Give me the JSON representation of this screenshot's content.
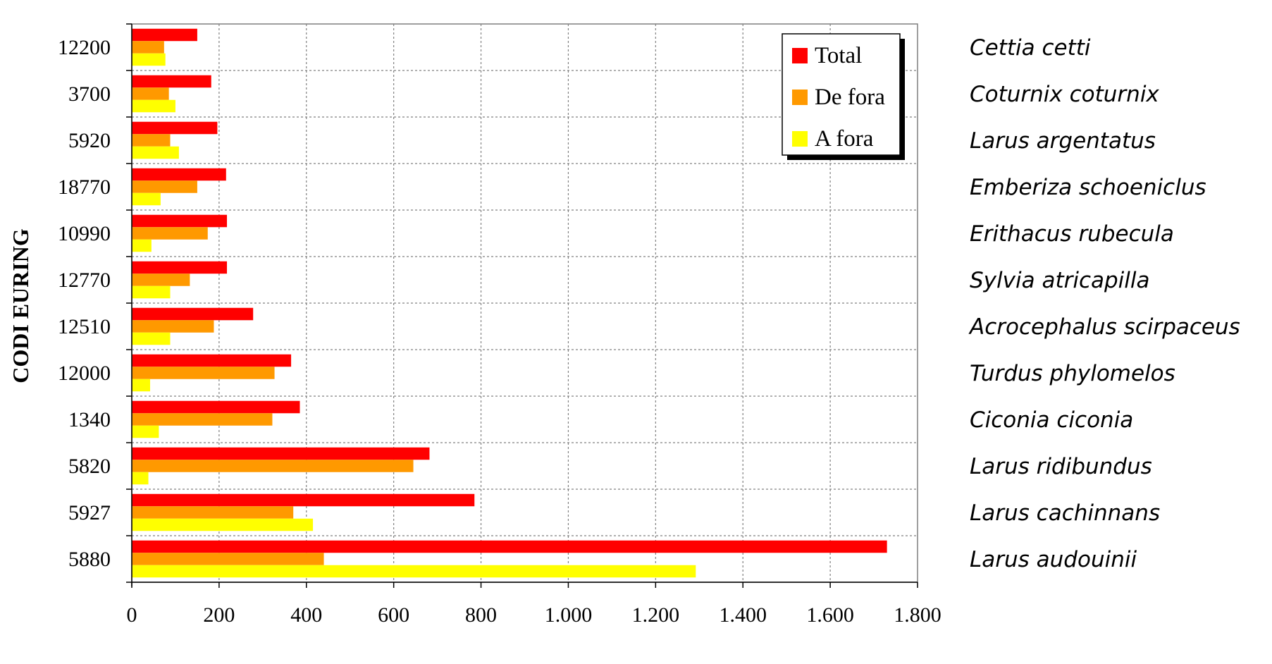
{
  "chart_data": {
    "type": "bar",
    "orientation": "horizontal",
    "ylabel": "CODI EURING",
    "xlim": [
      0,
      1800
    ],
    "xticks": [
      0,
      200,
      400,
      600,
      800,
      1000,
      1200,
      1400,
      1600,
      1800
    ],
    "xtick_labels": [
      "0",
      "200",
      "400",
      "600",
      "800",
      "1.000",
      "1.200",
      "1.400",
      "1.600",
      "1.800"
    ],
    "grid": true,
    "legend_position": "top-right",
    "categories": [
      "12200",
      "3700",
      "5920",
      "18770",
      "10990",
      "12770",
      "12510",
      "12000",
      "1340",
      "5820",
      "5927",
      "5880"
    ],
    "species": [
      "Cettia cetti",
      "Coturnix coturnix",
      "Larus argentatus",
      "Emberiza schoeniclus",
      "Erithacus rubecula",
      "Sylvia atricapilla",
      "Acrocephalus scirpaceus",
      "Turdus phylomelos",
      "Ciconia ciconia",
      "Larus ridibundus",
      "Larus cachinnans",
      "Larus audouinii"
    ],
    "series": [
      {
        "name": "Total",
        "color": "#ff0000",
        "values": [
          150,
          182,
          196,
          216,
          218,
          218,
          278,
          365,
          385,
          682,
          785,
          1730
        ]
      },
      {
        "name": "De fora",
        "color": "#ff9900",
        "values": [
          74,
          85,
          88,
          150,
          174,
          133,
          188,
          327,
          322,
          645,
          370,
          440
        ]
      },
      {
        "name": "A fora",
        "color": "#ffff00",
        "values": [
          77,
          100,
          108,
          66,
          45,
          88,
          88,
          42,
          62,
          38,
          415,
          1292
        ]
      }
    ]
  }
}
